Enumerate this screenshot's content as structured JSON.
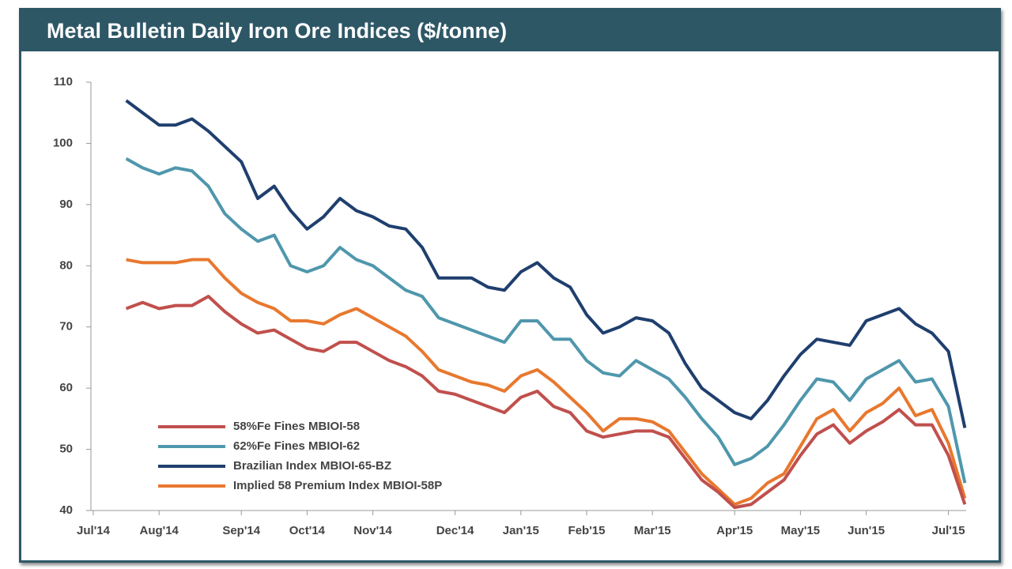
{
  "chart_data": {
    "type": "line",
    "title": "Metal Bulletin Daily Iron Ore Indices ($/tonne)",
    "categories": [
      "Jul'14",
      null,
      null,
      null,
      "Aug'14",
      null,
      null,
      null,
      null,
      "Sep'14",
      null,
      null,
      null,
      "Oct'14",
      null,
      null,
      null,
      "Nov'14",
      null,
      null,
      null,
      null,
      "Dec'14",
      null,
      null,
      null,
      "Jan'15",
      null,
      null,
      null,
      "Feb'15",
      null,
      null,
      null,
      "Mar'15",
      null,
      null,
      null,
      null,
      "Apr'15",
      null,
      null,
      null,
      "May'15",
      null,
      null,
      null,
      "Jun'15",
      null,
      null,
      null,
      null,
      "Jul'15",
      null
    ],
    "series": [
      {
        "name": "58%Fe Fines MBIOI-58",
        "color": "#c0504d",
        "values": [
          null,
          null,
          73,
          74,
          73,
          73.5,
          73.5,
          75,
          72.5,
          70.5,
          69,
          69.5,
          68,
          66.5,
          66,
          67.5,
          67.5,
          66,
          64.5,
          63.5,
          62,
          59.5,
          59,
          58,
          57,
          56,
          58.5,
          59.5,
          57,
          56,
          53,
          52,
          52.5,
          53,
          53,
          52,
          48.5,
          45,
          43,
          40.5,
          41,
          43,
          45,
          49,
          52.5,
          54,
          51,
          53,
          54.5,
          56.5,
          54,
          54,
          49,
          41
        ]
      },
      {
        "name": "62%Fe Fines MBIOI-62",
        "color": "#4f97ad",
        "values": [
          null,
          null,
          97.5,
          96,
          95,
          96,
          95.5,
          93,
          88.5,
          86,
          84,
          85,
          80,
          79,
          80,
          83,
          81,
          80,
          78,
          76,
          75,
          71.5,
          70.5,
          69.5,
          68.5,
          67.5,
          71,
          71,
          68,
          68,
          64.5,
          62.5,
          62,
          64.5,
          63,
          61.5,
          58.5,
          55,
          52,
          47.5,
          48.5,
          50.5,
          54,
          58,
          61.5,
          61,
          58,
          61.5,
          63,
          64.5,
          61,
          61.5,
          57,
          44.5
        ]
      },
      {
        "name": "Brazilian Index MBIOI-65-BZ",
        "color": "#1f3f6e",
        "values": [
          null,
          null,
          107,
          105,
          103,
          103,
          104,
          102,
          99.5,
          97,
          91,
          93,
          89,
          86,
          88,
          91,
          89,
          88,
          86.5,
          86,
          83,
          78,
          78,
          78,
          76.5,
          76,
          79,
          80.5,
          78,
          76.5,
          72,
          69,
          70,
          71.5,
          71,
          69,
          64,
          60,
          58,
          56,
          55,
          58,
          62,
          65.5,
          68,
          67.5,
          67,
          71,
          72,
          73,
          70.5,
          69,
          66,
          53.5
        ]
      },
      {
        "name": "Implied 58 Premium Index MBIOI-58P",
        "color": "#e8782e",
        "values": [
          null,
          null,
          81,
          80.5,
          80.5,
          80.5,
          81,
          81,
          78,
          75.5,
          74,
          73,
          71,
          71,
          70.5,
          72,
          73,
          71.5,
          70,
          68.5,
          66,
          63,
          62,
          61,
          60.5,
          59.5,
          62,
          63,
          61,
          58.5,
          56,
          53,
          55,
          55,
          54.5,
          53,
          49.5,
          46,
          43.5,
          41,
          42,
          44.5,
          46,
          50.5,
          55,
          56.5,
          53,
          56,
          57.5,
          60,
          55.5,
          56.5,
          51,
          42
        ]
      }
    ],
    "ylim": [
      40,
      110
    ],
    "yticks": [
      40,
      50,
      60,
      70,
      80,
      90,
      100,
      110
    ]
  }
}
